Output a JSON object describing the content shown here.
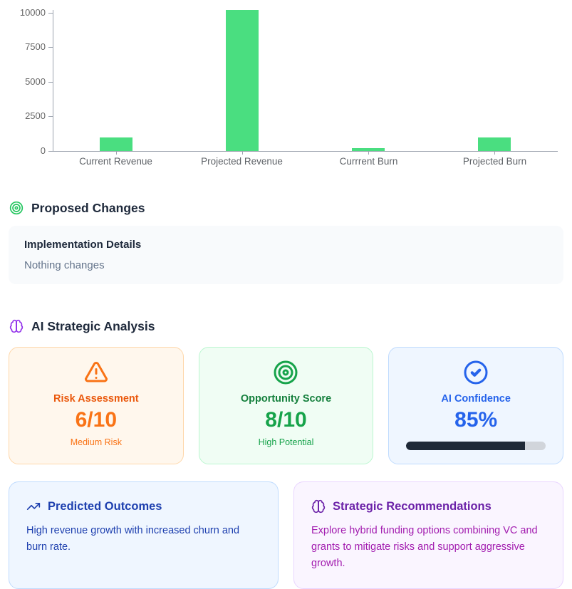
{
  "colors": {
    "bar_green": "#4ade80",
    "axis_gray": "#9ca3af",
    "risk_accent": "#f97316",
    "opportunity_accent": "#16a34a",
    "confidence_accent": "#2563eb",
    "predicted_accent": "#1e40af",
    "strategic_heading": "#6b21a8",
    "strategic_body": "#a21caf",
    "progress_fill": "#1f2937",
    "progress_track": "#d1d5db"
  },
  "chart_data": {
    "type": "bar",
    "categories": [
      "Current Revenue",
      "Projected Revenue",
      "Currrent Burn",
      "Projected Burn"
    ],
    "values": [
      1000,
      10200,
      200,
      1000
    ],
    "title": "",
    "xlabel": "",
    "ylabel": "",
    "yticks": [
      0,
      2500,
      5000,
      7500,
      10000
    ],
    "ylim": [
      0,
      10200
    ],
    "bar_color": "#4ade80",
    "grid": false,
    "legend": false
  },
  "proposed_changes": {
    "heading": "Proposed Changes",
    "icon": "target-icon",
    "details_title": "Implementation Details",
    "details_body": "Nothing changes"
  },
  "ai_analysis": {
    "heading": "AI Strategic Analysis",
    "icon": "brain-icon",
    "cards": [
      {
        "icon": "alert-triangle-icon",
        "title": "Risk Assessment",
        "value": "6/10",
        "subtitle": "Medium Risk"
      },
      {
        "icon": "target-icon",
        "title": "Opportunity Score",
        "value": "8/10",
        "subtitle": "High Potential"
      },
      {
        "icon": "circle-check-icon",
        "title": "AI Confidence",
        "value": "85%",
        "progress_percent": 85
      }
    ],
    "outcome_cards": [
      {
        "icon": "trending-up-icon",
        "title": "Predicted Outcomes",
        "body": "High revenue growth with increased churn and burn rate."
      },
      {
        "icon": "brain-icon",
        "title": "Strategic Recommendations",
        "body": "Explore hybrid funding options combining VC and grants to mitigate risks and support aggressive growth."
      }
    ]
  }
}
